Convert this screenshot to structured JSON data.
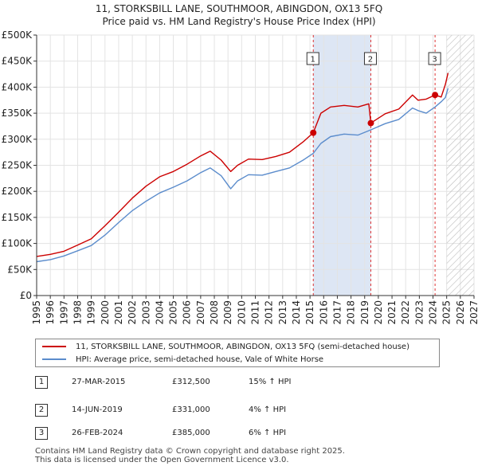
{
  "title_line1": "11, STORKSBILL LANE, SOUTHMOOR, ABINGDON, OX13 5FQ",
  "title_line2": "Price paid vs. HM Land Registry's House Price Index (HPI)",
  "chart_data": {
    "type": "line",
    "ylim": [
      0,
      500000
    ],
    "xlim": [
      1995,
      2027
    ],
    "y_ticks": [
      0,
      50000,
      100000,
      150000,
      200000,
      250000,
      300000,
      350000,
      400000,
      450000,
      500000
    ],
    "y_tick_labels": [
      "£0",
      "£50K",
      "£100K",
      "£150K",
      "£200K",
      "£250K",
      "£300K",
      "£350K",
      "£400K",
      "£450K",
      "£500K"
    ],
    "x_tick_labels": [
      "1995",
      "1996",
      "1997",
      "1998",
      "1999",
      "2000",
      "2001",
      "2002",
      "2003",
      "2004",
      "2005",
      "2006",
      "2007",
      "2008",
      "2009",
      "2010",
      "2011",
      "2012",
      "2013",
      "2014",
      "2015",
      "2016",
      "2017",
      "2018",
      "2019",
      "2020",
      "2021",
      "2022",
      "2023",
      "2024",
      "2025",
      "2026",
      "2027"
    ],
    "series": [
      {
        "name": "11, STORKSBILL LANE, SOUTHMOOR, ABINGDON, OX13 5FQ (semi-detached house)",
        "color": "#cc0000",
        "x": [
          1995.0,
          1996.0,
          1997.0,
          1998.0,
          1999.0,
          2000.0,
          2001.0,
          2002.0,
          2003.0,
          2004.0,
          2005.0,
          2006.0,
          2007.0,
          2007.7,
          2008.5,
          2009.2,
          2009.7,
          2010.5,
          2011.5,
          2012.5,
          2013.5,
          2014.5,
          2015.24,
          2015.8,
          2016.5,
          2017.5,
          2018.5,
          2019.3,
          2019.45,
          2019.8,
          2020.5,
          2021.5,
          2022.5,
          2022.9,
          2023.5,
          2024.15,
          2024.6,
          2024.9,
          2025.1
        ],
        "values": [
          75000,
          79000,
          85000,
          97000,
          109000,
          134000,
          160000,
          187000,
          210000,
          228000,
          238000,
          252000,
          268000,
          277000,
          260000,
          238000,
          250000,
          262000,
          261000,
          267000,
          275000,
          295000,
          312500,
          350000,
          362000,
          365000,
          362000,
          368000,
          331000,
          337000,
          349000,
          358000,
          385000,
          375000,
          377000,
          385000,
          381000,
          405000,
          427000
        ]
      },
      {
        "name": "HPI: Average price, semi-detached house, Vale of White Horse",
        "color": "#5b8ccc",
        "x": [
          1995.0,
          1996.0,
          1997.0,
          1998.0,
          1999.0,
          2000.0,
          2001.0,
          2002.0,
          2003.0,
          2004.0,
          2005.0,
          2006.0,
          2007.0,
          2007.7,
          2008.5,
          2009.2,
          2009.7,
          2010.5,
          2011.5,
          2012.5,
          2013.5,
          2014.5,
          2015.24,
          2015.8,
          2016.5,
          2017.5,
          2018.5,
          2019.45,
          2019.8,
          2020.5,
          2021.5,
          2022.5,
          2022.9,
          2023.5,
          2024.15,
          2024.6,
          2024.9,
          2025.1
        ],
        "values": [
          65000,
          69000,
          76000,
          86000,
          96000,
          116000,
          140000,
          163000,
          181000,
          197000,
          208000,
          220000,
          236000,
          245000,
          230000,
          205000,
          220000,
          232000,
          231000,
          238000,
          245000,
          260000,
          273000,
          292000,
          305000,
          310000,
          308000,
          318000,
          322000,
          330000,
          338000,
          360000,
          355000,
          350000,
          362000,
          372000,
          380000,
          398000
        ]
      }
    ],
    "sale_markers": [
      {
        "label": "1",
        "year": 2015.24,
        "price": 312500
      },
      {
        "label": "2",
        "year": 2019.45,
        "price": 331000
      },
      {
        "label": "3",
        "year": 2024.15,
        "price": 385000
      }
    ],
    "shaded_ranges": [
      {
        "from": 2015.24,
        "to": 2019.45
      }
    ],
    "forecast_hatch_from": 2025.0
  },
  "legend": {
    "property_label": "11, STORKSBILL LANE, SOUTHMOOR, ABINGDON, OX13 5FQ (semi-detached house)",
    "hpi_label": "HPI: Average price, semi-detached house, Vale of White Horse"
  },
  "sales": [
    {
      "num": "1",
      "date": "27-MAR-2015",
      "price": "£312,500",
      "hpi": "15% ↑ HPI"
    },
    {
      "num": "2",
      "date": "14-JUN-2019",
      "price": "£331,000",
      "hpi": "4% ↑ HPI"
    },
    {
      "num": "3",
      "date": "26-FEB-2024",
      "price": "£385,000",
      "hpi": "6% ↑ HPI"
    }
  ],
  "footer_line1": "Contains HM Land Registry data © Crown copyright and database right 2025.",
  "footer_line2": "This data is licensed under the Open Government Licence v3.0."
}
